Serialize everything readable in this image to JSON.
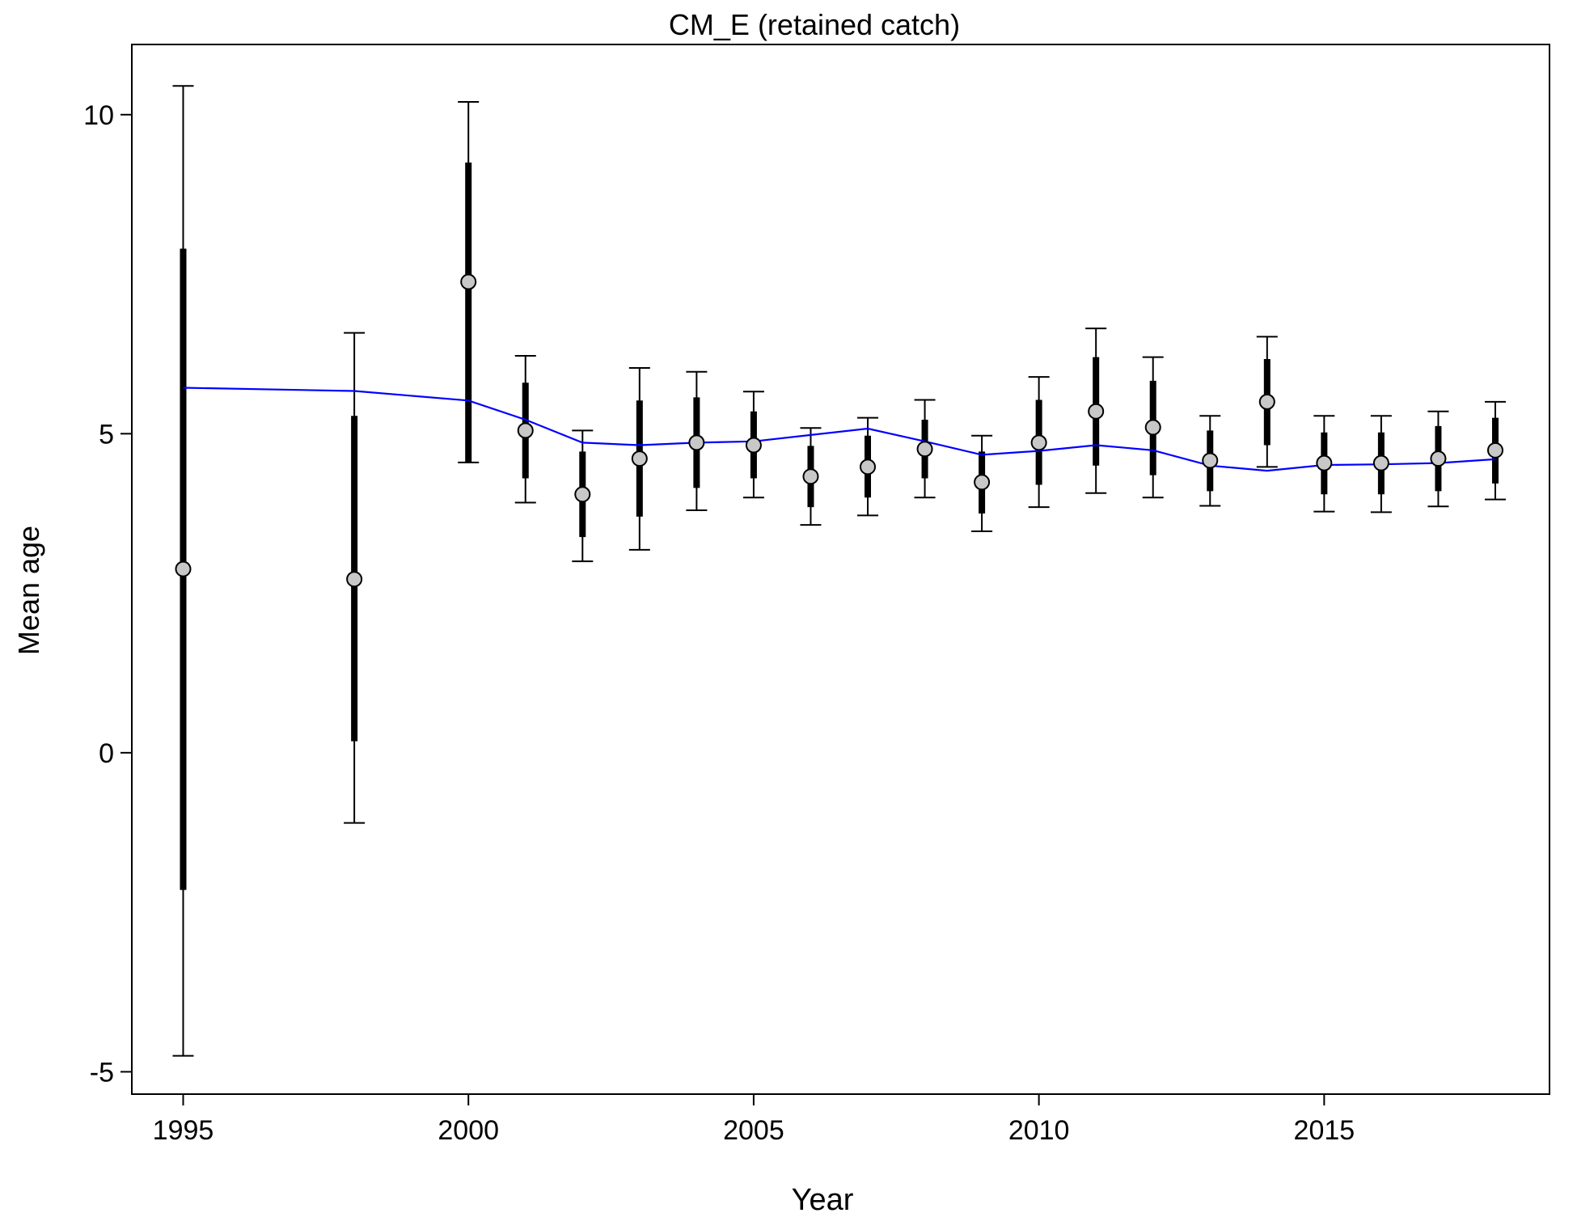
{
  "chart_data": {
    "type": "scatter",
    "title": "CM_E (retained catch)",
    "xlabel": "Year",
    "ylabel": "Mean age",
    "xlim": [
      1994.1,
      2018.95
    ],
    "ylim": [
      -5.35,
      11.1
    ],
    "x_ticks": [
      1995,
      2000,
      2005,
      2010,
      2015
    ],
    "x_tick_labels": [
      "1995",
      "2000",
      "2005",
      "2010",
      "2015"
    ],
    "y_ticks": [
      -5,
      0,
      5,
      10
    ],
    "y_tick_labels": [
      "-5",
      "0",
      "5",
      "10"
    ],
    "grid": false,
    "colors": {
      "fit_line": "#0000ff",
      "points": "#c8c8c8",
      "bars": "#000000"
    },
    "observed": {
      "x": [
        1995,
        1998,
        2000,
        2001,
        2002,
        2003,
        2004,
        2005,
        2006,
        2007,
        2008,
        2009,
        2010,
        2011,
        2012,
        2013,
        2014,
        2015,
        2016,
        2017,
        2018
      ],
      "mean": [
        2.88,
        2.72,
        7.38,
        5.05,
        4.05,
        4.61,
        4.86,
        4.82,
        4.33,
        4.48,
        4.76,
        4.24,
        4.86,
        5.35,
        5.1,
        4.58,
        5.5,
        4.54,
        4.54,
        4.61,
        4.74
      ],
      "inner_lower": [
        -2.15,
        0.18,
        4.55,
        4.3,
        3.38,
        3.7,
        4.15,
        4.3,
        3.85,
        4.0,
        4.3,
        3.75,
        4.2,
        4.5,
        4.35,
        4.1,
        4.82,
        4.05,
        4.05,
        4.1,
        4.22
      ],
      "inner_upper": [
        7.9,
        5.28,
        9.25,
        5.8,
        4.72,
        5.52,
        5.57,
        5.35,
        4.81,
        4.97,
        5.22,
        4.72,
        5.53,
        6.2,
        5.83,
        5.05,
        6.17,
        5.02,
        5.02,
        5.12,
        5.25
      ],
      "outer_lower": [
        -4.75,
        -1.1,
        4.55,
        3.92,
        3.0,
        3.18,
        3.8,
        4.0,
        3.57,
        3.72,
        4.0,
        3.47,
        3.85,
        4.07,
        4.0,
        3.87,
        4.48,
        3.78,
        3.77,
        3.86,
        3.97
      ],
      "outer_upper": [
        10.45,
        6.58,
        10.2,
        6.22,
        5.05,
        6.03,
        5.97,
        5.66,
        5.09,
        5.25,
        5.53,
        4.97,
        5.89,
        6.65,
        6.2,
        5.28,
        6.52,
        5.28,
        5.28,
        5.35,
        5.5
      ]
    },
    "expected": {
      "x": [
        1995,
        1998,
        2000,
        2001,
        2002,
        2003,
        2004,
        2005,
        2006,
        2007,
        2008,
        2009,
        2010,
        2011,
        2012,
        2013,
        2014,
        2015,
        2016,
        2017,
        2018
      ],
      "values": [
        5.72,
        5.67,
        5.52,
        5.22,
        4.86,
        4.82,
        4.86,
        4.88,
        4.98,
        5.08,
        4.88,
        4.67,
        4.73,
        4.82,
        4.74,
        4.5,
        4.42,
        4.51,
        4.52,
        4.54,
        4.6
      ]
    }
  }
}
